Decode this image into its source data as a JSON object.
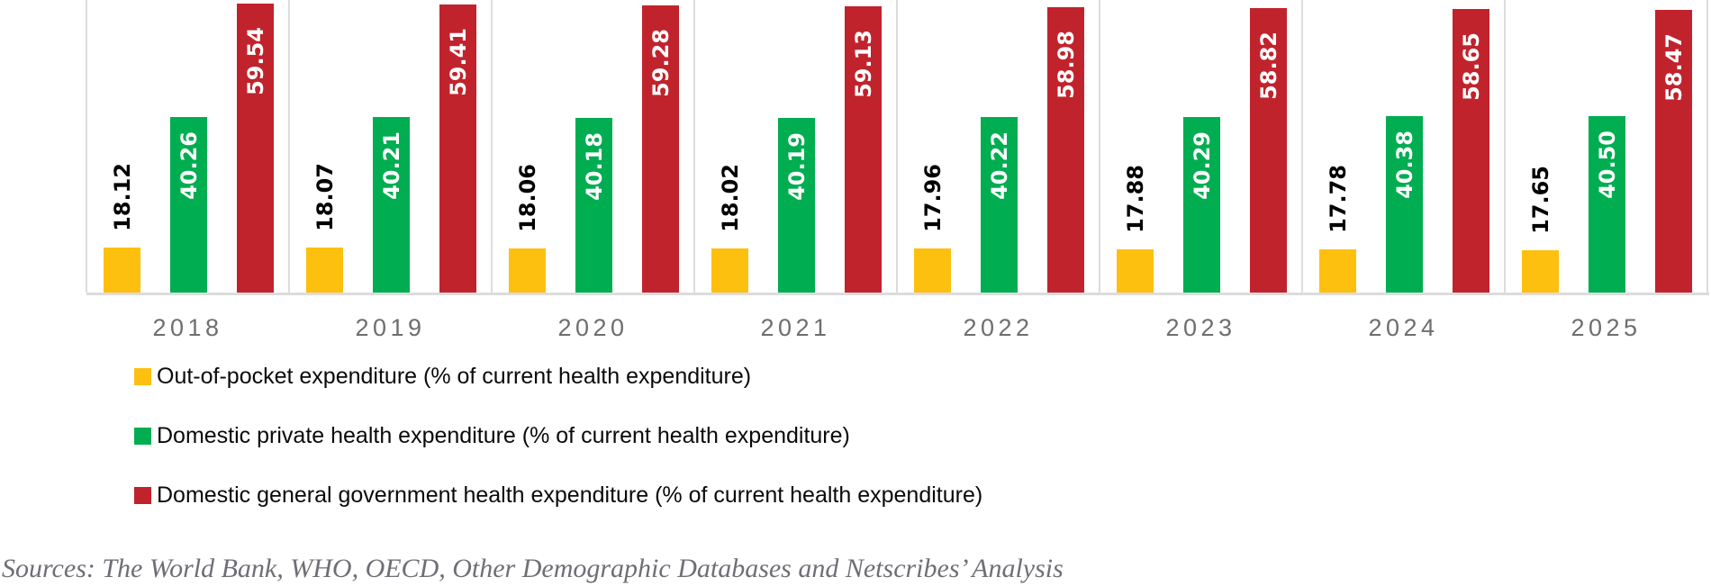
{
  "chart_data": {
    "type": "bar",
    "title": "",
    "xlabel": "",
    "ylabel": "",
    "categories": [
      "2018",
      "2019",
      "2020",
      "2021",
      "2022",
      "2023",
      "2024",
      "2025"
    ],
    "series": [
      {
        "key": "out-of-pocket",
        "name": "Out-of-pocket expenditure (% of current health expenditure)",
        "color": "#FEC00F",
        "label_color": "#000000",
        "label_placement": "outside-end",
        "values": [
          18.12,
          18.07,
          18.06,
          18.02,
          17.96,
          17.88,
          17.78,
          17.65
        ]
      },
      {
        "key": "domestic-private",
        "name": "Domestic private health expenditure (% of current health expenditure)",
        "color": "#00AD50",
        "label_color": "#FFFFFF",
        "label_placement": "inside-end",
        "values": [
          40.26,
          40.21,
          40.18,
          40.19,
          40.22,
          40.29,
          40.38,
          40.5
        ]
      },
      {
        "key": "domestic-government",
        "name": "Domestic general government health expenditure (% of current health expenditure)",
        "color": "#C1232C",
        "label_color": "#FFFFFF",
        "label_placement": "inside-end",
        "values": [
          59.54,
          59.41,
          59.28,
          59.13,
          58.98,
          58.82,
          58.65,
          58.47
        ]
      }
    ],
    "value_labels_rotation": "vertical-bottom-to-top",
    "value_axis_visible": false,
    "effective_baseline_value": 10.5,
    "top_cropped": true,
    "grid": "vertical-panel-borders",
    "legend_position": "bottom-left"
  },
  "colors": {
    "background": "#FFFFFF",
    "panel_border": "#DCDCDC",
    "year_label": "#6E6E6E",
    "source_text": "#6E6E76"
  },
  "source_note": "Sources: The World Bank, WHO, OECD, Other Demographic Databases and Netscribes’ Analysis"
}
